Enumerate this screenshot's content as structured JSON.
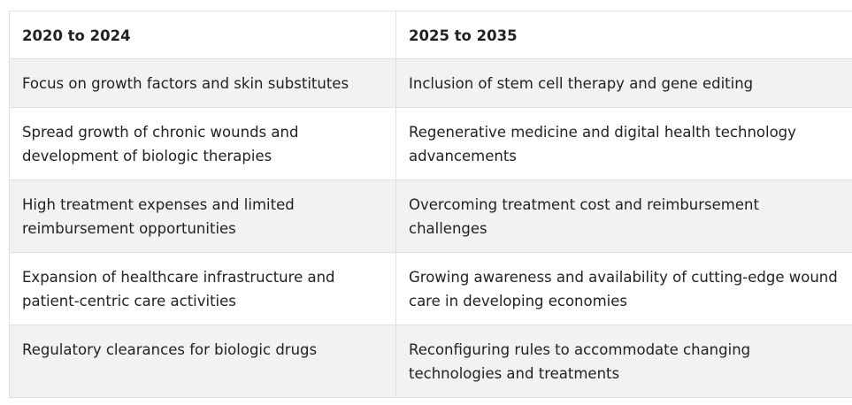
{
  "table": {
    "headers": [
      "2020 to 2024",
      "2025 to 2035"
    ],
    "rows": [
      [
        "Focus on growth factors and skin substitutes",
        "Inclusion of stem cell therapy and gene editing"
      ],
      [
        "Spread growth of chronic wounds and development of biologic therapies",
        "Regenerative medicine and digital health technology advancements"
      ],
      [
        "High treatment expenses and limited reimbursement opportunities",
        "Overcoming treatment cost and reimbursement challenges"
      ],
      [
        "Expansion of healthcare infrastructure and patient-centric care activities",
        "Growing awareness and availability of cutting-edge wound care in developing economies"
      ],
      [
        "Regulatory clearances for biologic drugs",
        "Reconfiguring rules to accommodate changing technologies and treatments"
      ]
    ]
  }
}
